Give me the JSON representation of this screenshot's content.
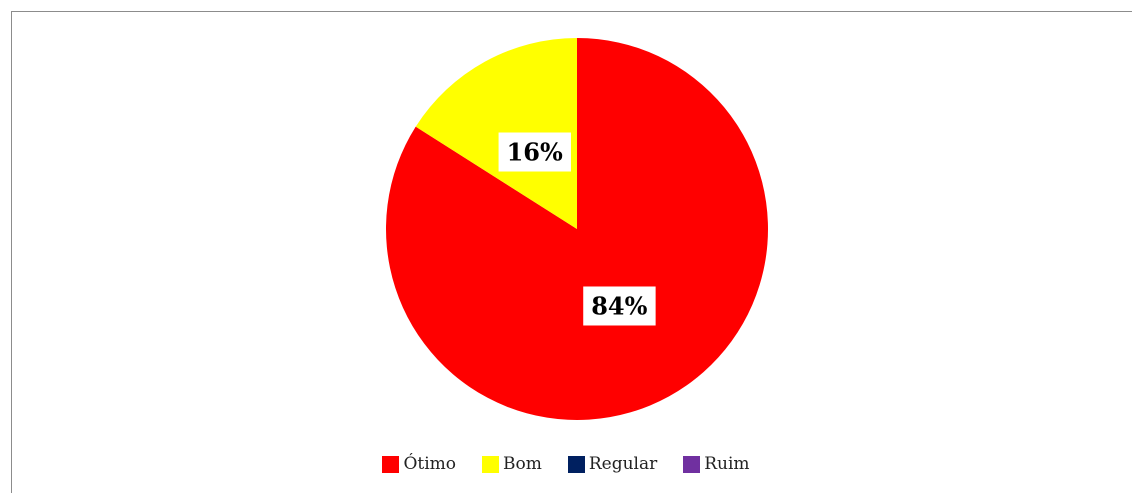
{
  "chart_data": {
    "type": "pie",
    "title": "",
    "categories": [
      "Ótimo",
      "Bom",
      "Regular",
      "Ruim"
    ],
    "values": [
      84,
      16,
      0,
      0
    ],
    "labels": [
      "84%",
      "16%",
      "",
      ""
    ],
    "colors": [
      "#ff0000",
      "#ffff00",
      "#002060",
      "#7030a0"
    ],
    "start_angle_deg": 0,
    "direction": "clockwise",
    "legend_position": "bottom"
  }
}
